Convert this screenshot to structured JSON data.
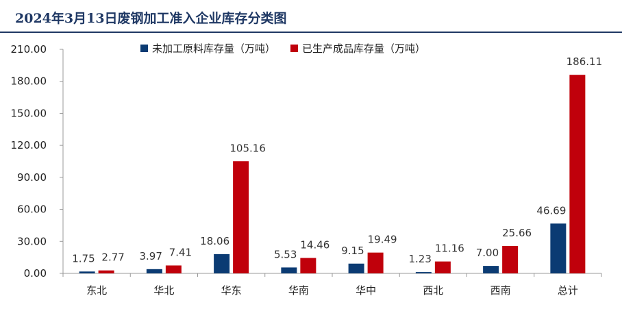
{
  "header": {
    "title": "2024年3月13日废钢加工准入企业库存分类图"
  },
  "chart_data": {
    "type": "bar",
    "title": "2024年3月13日废钢加工准入企业库存分类图",
    "categories": [
      "东北",
      "华北",
      "华东",
      "华南",
      "华中",
      "西北",
      "西南",
      "总计"
    ],
    "series": [
      {
        "name": "未加工原料库存量（万吨）",
        "color": "#0b3b73",
        "values": [
          1.75,
          3.97,
          18.06,
          5.53,
          9.15,
          1.23,
          7.0,
          46.69
        ],
        "labels": [
          "1.75",
          "3.97",
          "18.06",
          "5.53",
          "9.15",
          "1.23",
          "7.00",
          "46.69"
        ]
      },
      {
        "name": "已生产成品库存量（万吨）",
        "color": "#c0000b",
        "values": [
          2.77,
          7.41,
          105.16,
          14.46,
          19.49,
          11.16,
          25.66,
          186.11
        ],
        "labels": [
          "2.77",
          "7.41",
          "105.16",
          "14.46",
          "19.49",
          "11.16",
          "25.66",
          "186.11"
        ]
      }
    ],
    "ylim": [
      0,
      210
    ],
    "yticks": [
      0,
      30,
      60,
      90,
      120,
      150,
      180,
      210
    ],
    "ytick_labels": [
      "0.00",
      "30.00",
      "60.00",
      "90.00",
      "120.00",
      "150.00",
      "180.00",
      "210.00"
    ],
    "grid": false,
    "legend": "top-center"
  }
}
